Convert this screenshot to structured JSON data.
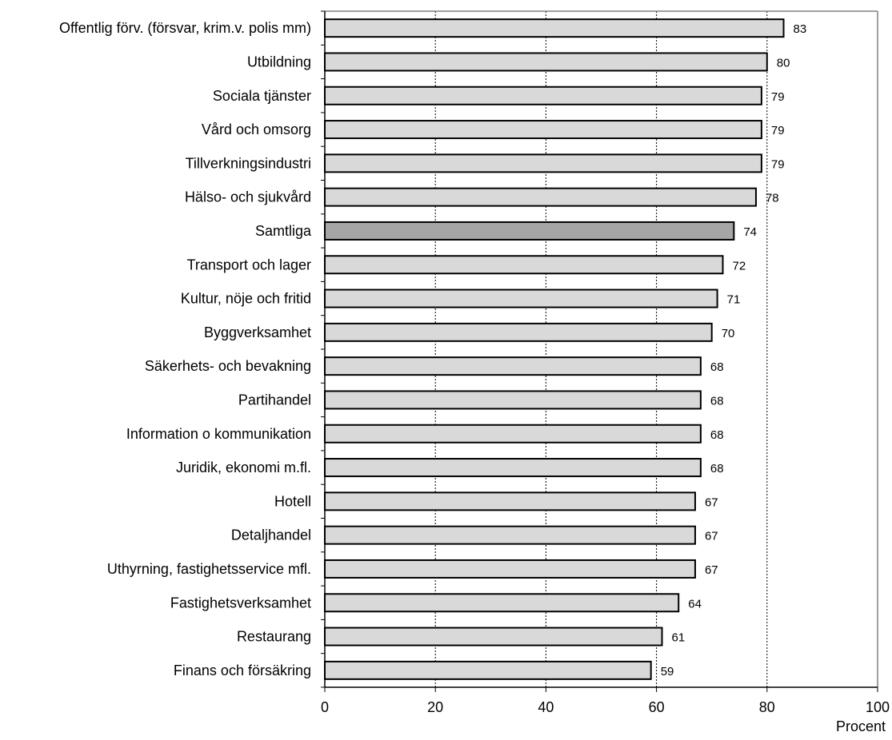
{
  "chart_data": {
    "type": "bar",
    "orientation": "horizontal",
    "title": "",
    "xlabel": "Procent",
    "ylabel": "",
    "xlim": [
      0,
      100
    ],
    "x_ticks": [
      0,
      20,
      40,
      60,
      80,
      100
    ],
    "grid": "vertical dotted at 20, 40, 60, 80",
    "categories": [
      "Offentlig förv. (försvar, krim.v. polis mm)",
      "Utbildning",
      "Sociala tjänster",
      "Vård och omsorg",
      "Tillverkningsindustri",
      "Hälso- och sjukvård",
      "Samtliga",
      "Transport och lager",
      "Kultur, nöje och fritid",
      "Byggverksamhet",
      "Säkerhets- och bevakning",
      "Partihandel",
      "Information o kommunikation",
      "Juridik, ekonomi m.fl.",
      "Hotell",
      "Detaljhandel",
      "Uthyrning, fastighetsservice mfl.",
      "Fastighetsverksamhet",
      "Restaurang",
      "Finans och försäkring"
    ],
    "values": [
      83,
      80,
      79,
      79,
      79,
      78,
      74,
      72,
      71,
      70,
      68,
      68,
      68,
      68,
      67,
      67,
      67,
      64,
      61,
      59
    ],
    "value_labels": [
      "83",
      "80",
      "79",
      "79",
      "79",
      "78",
      "74",
      "72",
      "71",
      "70",
      "68",
      "68",
      "68",
      "68",
      "67",
      "67",
      "67",
      "64",
      "61",
      "59"
    ],
    "highlight_category": "Samtliga",
    "colors": {
      "bar": "#d9d9d9",
      "bar_highlight": "#a6a6a6",
      "bar_stroke": "#000000",
      "grid": "#000000",
      "frame": "#808080"
    }
  }
}
